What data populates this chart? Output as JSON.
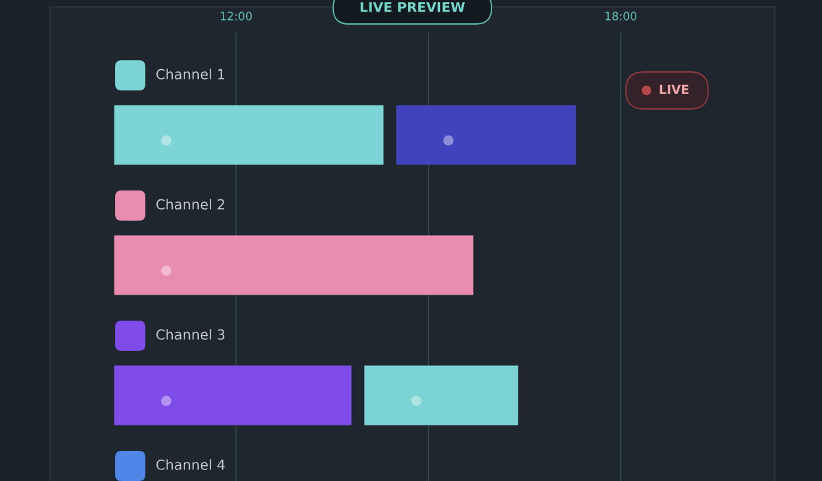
{
  "chart_data": {
    "type": "bar",
    "orientation": "horizontal",
    "title": "LIVE PREVIEW",
    "categories": [
      "Channel 1",
      "Channel 2",
      "Channel 3",
      "Channel 4"
    ],
    "series": [
      {
        "base": [
          10.1,
          10.1,
          10.1,
          null
        ],
        "values": [
          4.2,
          5.6,
          3.7,
          null
        ],
        "colors": [
          "#7dd4d4",
          "#e98db0",
          "#7f4cea",
          "#4f86e8"
        ]
      },
      {
        "base": [
          14.5,
          null,
          14.0,
          null
        ],
        "values": [
          2.8,
          null,
          2.4,
          null
        ],
        "colors": [
          "#4143bd",
          null,
          "#7bd3d3",
          null
        ]
      }
    ],
    "xlim": [
      9.1,
      20.4
    ],
    "xticks": [
      {
        "value": 12,
        "label": "12:00"
      },
      {
        "value": 15,
        "label": null
      },
      {
        "value": 18,
        "label": "18:00"
      }
    ],
    "grid": "x",
    "annotations": [
      "LIVE"
    ]
  }
}
